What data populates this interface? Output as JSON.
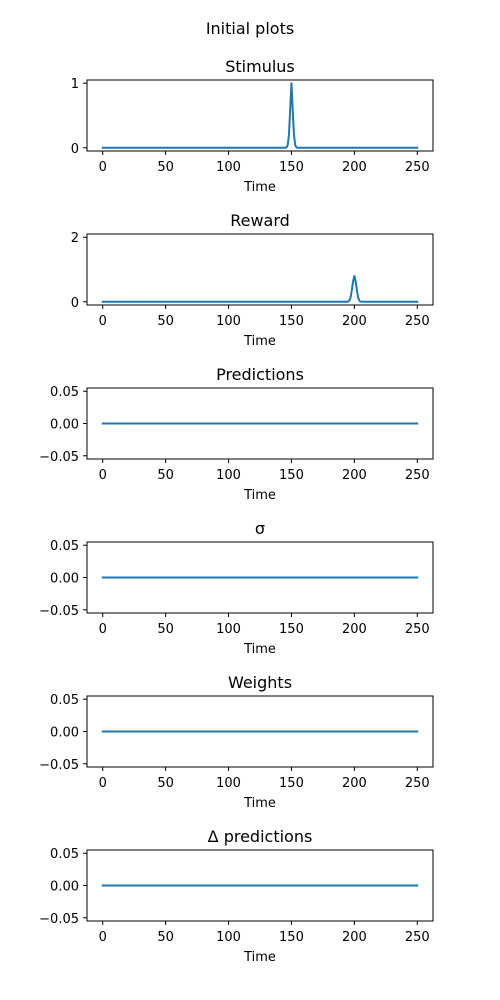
{
  "figure": {
    "suptitle": "Initial plots"
  },
  "style": {
    "line_color": "#1f77b4",
    "axes_color": "#000000",
    "background": "#ffffff"
  },
  "chart_data": [
    {
      "type": "line",
      "title": "Stimulus",
      "xlabel": "Time",
      "ylabel": "",
      "xlim": [
        -12.5,
        262.5
      ],
      "ylim": [
        -0.05,
        1.05
      ],
      "xticks": [
        0,
        50,
        100,
        150,
        200,
        250
      ],
      "yticks": [
        0,
        1
      ],
      "ytick_labels": [
        "0",
        "1"
      ],
      "grid": false,
      "series": [
        {
          "x": [
            0,
            100,
            145,
            146,
            147,
            148,
            149,
            150,
            151,
            152,
            153,
            154,
            155,
            160,
            250
          ],
          "y": [
            0,
            0,
            0,
            0.004,
            0.04,
            0.2,
            0.6,
            1.0,
            0.6,
            0.2,
            0.04,
            0.004,
            0,
            0,
            0
          ]
        }
      ]
    },
    {
      "type": "line",
      "title": "Reward",
      "xlabel": "Time",
      "ylabel": "",
      "xlim": [
        -12.5,
        262.5
      ],
      "ylim": [
        -0.1,
        2.1
      ],
      "xticks": [
        0,
        50,
        100,
        150,
        200,
        250
      ],
      "yticks": [
        0,
        2
      ],
      "ytick_labels": [
        "0",
        "2"
      ],
      "grid": false,
      "series": [
        {
          "x": [
            0,
            150,
            194,
            195,
            196,
            197,
            198,
            199,
            200,
            201,
            202,
            203,
            204,
            205,
            206,
            250
          ],
          "y": [
            0,
            0,
            0,
            0.004,
            0.03,
            0.13,
            0.36,
            0.64,
            0.8,
            0.64,
            0.36,
            0.13,
            0.03,
            0.004,
            0,
            0
          ]
        }
      ]
    },
    {
      "type": "line",
      "title": "Predictions",
      "xlabel": "Time",
      "ylabel": "",
      "xlim": [
        -12.5,
        262.5
      ],
      "ylim": [
        -0.055,
        0.055
      ],
      "xticks": [
        0,
        50,
        100,
        150,
        200,
        250
      ],
      "yticks": [
        -0.05,
        0,
        0.05
      ],
      "ytick_labels": [
        "−0.05",
        "0.00",
        "0.05"
      ],
      "grid": false,
      "series": [
        {
          "x": [
            0,
            250
          ],
          "y": [
            0,
            0
          ]
        }
      ]
    },
    {
      "type": "line",
      "title": "σ",
      "xlabel": "Time",
      "ylabel": "",
      "xlim": [
        -12.5,
        262.5
      ],
      "ylim": [
        -0.055,
        0.055
      ],
      "xticks": [
        0,
        50,
        100,
        150,
        200,
        250
      ],
      "yticks": [
        -0.05,
        0,
        0.05
      ],
      "ytick_labels": [
        "−0.05",
        "0.00",
        "0.05"
      ],
      "grid": false,
      "series": [
        {
          "x": [
            0,
            250
          ],
          "y": [
            0,
            0
          ]
        }
      ]
    },
    {
      "type": "line",
      "title": "Weights",
      "xlabel": "Time",
      "ylabel": "",
      "xlim": [
        -12.5,
        262.5
      ],
      "ylim": [
        -0.055,
        0.055
      ],
      "xticks": [
        0,
        50,
        100,
        150,
        200,
        250
      ],
      "yticks": [
        -0.05,
        0,
        0.05
      ],
      "ytick_labels": [
        "−0.05",
        "0.00",
        "0.05"
      ],
      "grid": false,
      "series": [
        {
          "x": [
            0,
            250
          ],
          "y": [
            0,
            0
          ]
        }
      ]
    },
    {
      "type": "line",
      "title": "Δ predictions",
      "xlabel": "Time",
      "ylabel": "",
      "xlim": [
        -12.5,
        262.5
      ],
      "ylim": [
        -0.055,
        0.055
      ],
      "xticks": [
        0,
        50,
        100,
        150,
        200,
        250
      ],
      "yticks": [
        -0.05,
        0,
        0.05
      ],
      "ytick_labels": [
        "−0.05",
        "0.00",
        "0.05"
      ],
      "grid": false,
      "series": [
        {
          "x": [
            0,
            250
          ],
          "y": [
            0,
            0
          ]
        }
      ]
    }
  ]
}
